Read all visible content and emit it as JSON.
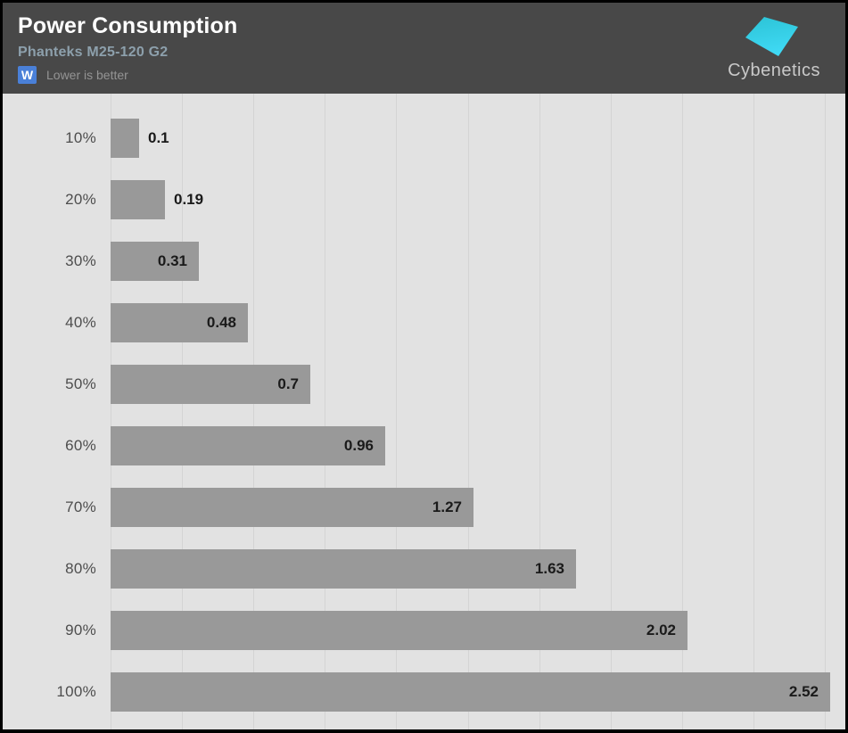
{
  "header": {
    "title": "Power Consumption",
    "subtitle": "Phanteks M25-120 G2",
    "unit_badge": "W",
    "note": "Lower is better",
    "logo_text": "Cybenetics"
  },
  "colors": {
    "header_bg": "#484848",
    "chart_bg": "#e2e2e2",
    "gridline": "#d4d4d4",
    "bar": "#999999",
    "value_text": "#1a1a1a",
    "category_text": "#4d4d4d",
    "subtitle": "#8da0ac",
    "badge_blue": "#4a80d8",
    "note_gray": "#949494",
    "logo_text_color": "#c9c9c9",
    "logo_cyan_1": "#2cc3d6",
    "logo_cyan_2": "#3fd9f4"
  },
  "chart_data": {
    "type": "bar",
    "orientation": "horizontal",
    "title": "Power Consumption",
    "subtitle": "Phanteks M25-120 G2",
    "unit": "W",
    "legend": "Lower is better",
    "categories": [
      "10%",
      "20%",
      "30%",
      "40%",
      "50%",
      "60%",
      "70%",
      "80%",
      "90%",
      "100%"
    ],
    "values": [
      0.1,
      0.19,
      0.31,
      0.48,
      0.7,
      0.96,
      1.27,
      1.63,
      2.02,
      2.52
    ],
    "xlim": [
      0,
      2.75
    ],
    "gridline_interval": 0.25,
    "gridline_max": 2.5,
    "grid": "vertical"
  }
}
